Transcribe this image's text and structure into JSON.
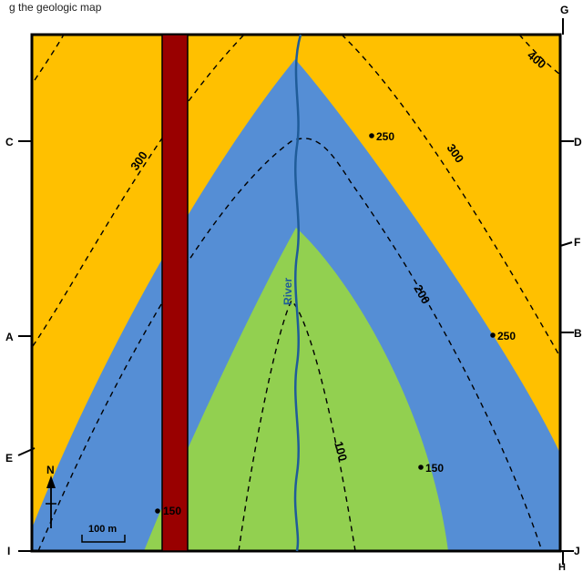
{
  "header_text": "g the geologic map",
  "edge_labels": {
    "left": [
      "C",
      "A",
      "E",
      "I"
    ],
    "right": [
      "G",
      "D",
      "F",
      "B",
      "J",
      "H"
    ]
  },
  "contours": [
    {
      "label": "300",
      "side": "left"
    },
    {
      "label": "400",
      "side": "top-right"
    },
    {
      "label": "300",
      "side": "right"
    },
    {
      "label": "200",
      "side": "right"
    },
    {
      "label": "100",
      "side": "center"
    }
  ],
  "point_elevations": [
    "250",
    "250",
    "150",
    "150"
  ],
  "river_label": "River",
  "north_label": "N",
  "scale_label": "100 m",
  "colors": {
    "upper_unit": "#FFC000",
    "middle_unit": "#558ED5",
    "lower_unit": "#92D050",
    "dike": "#990000",
    "river": "#1F5C99",
    "frame": "#000000"
  }
}
